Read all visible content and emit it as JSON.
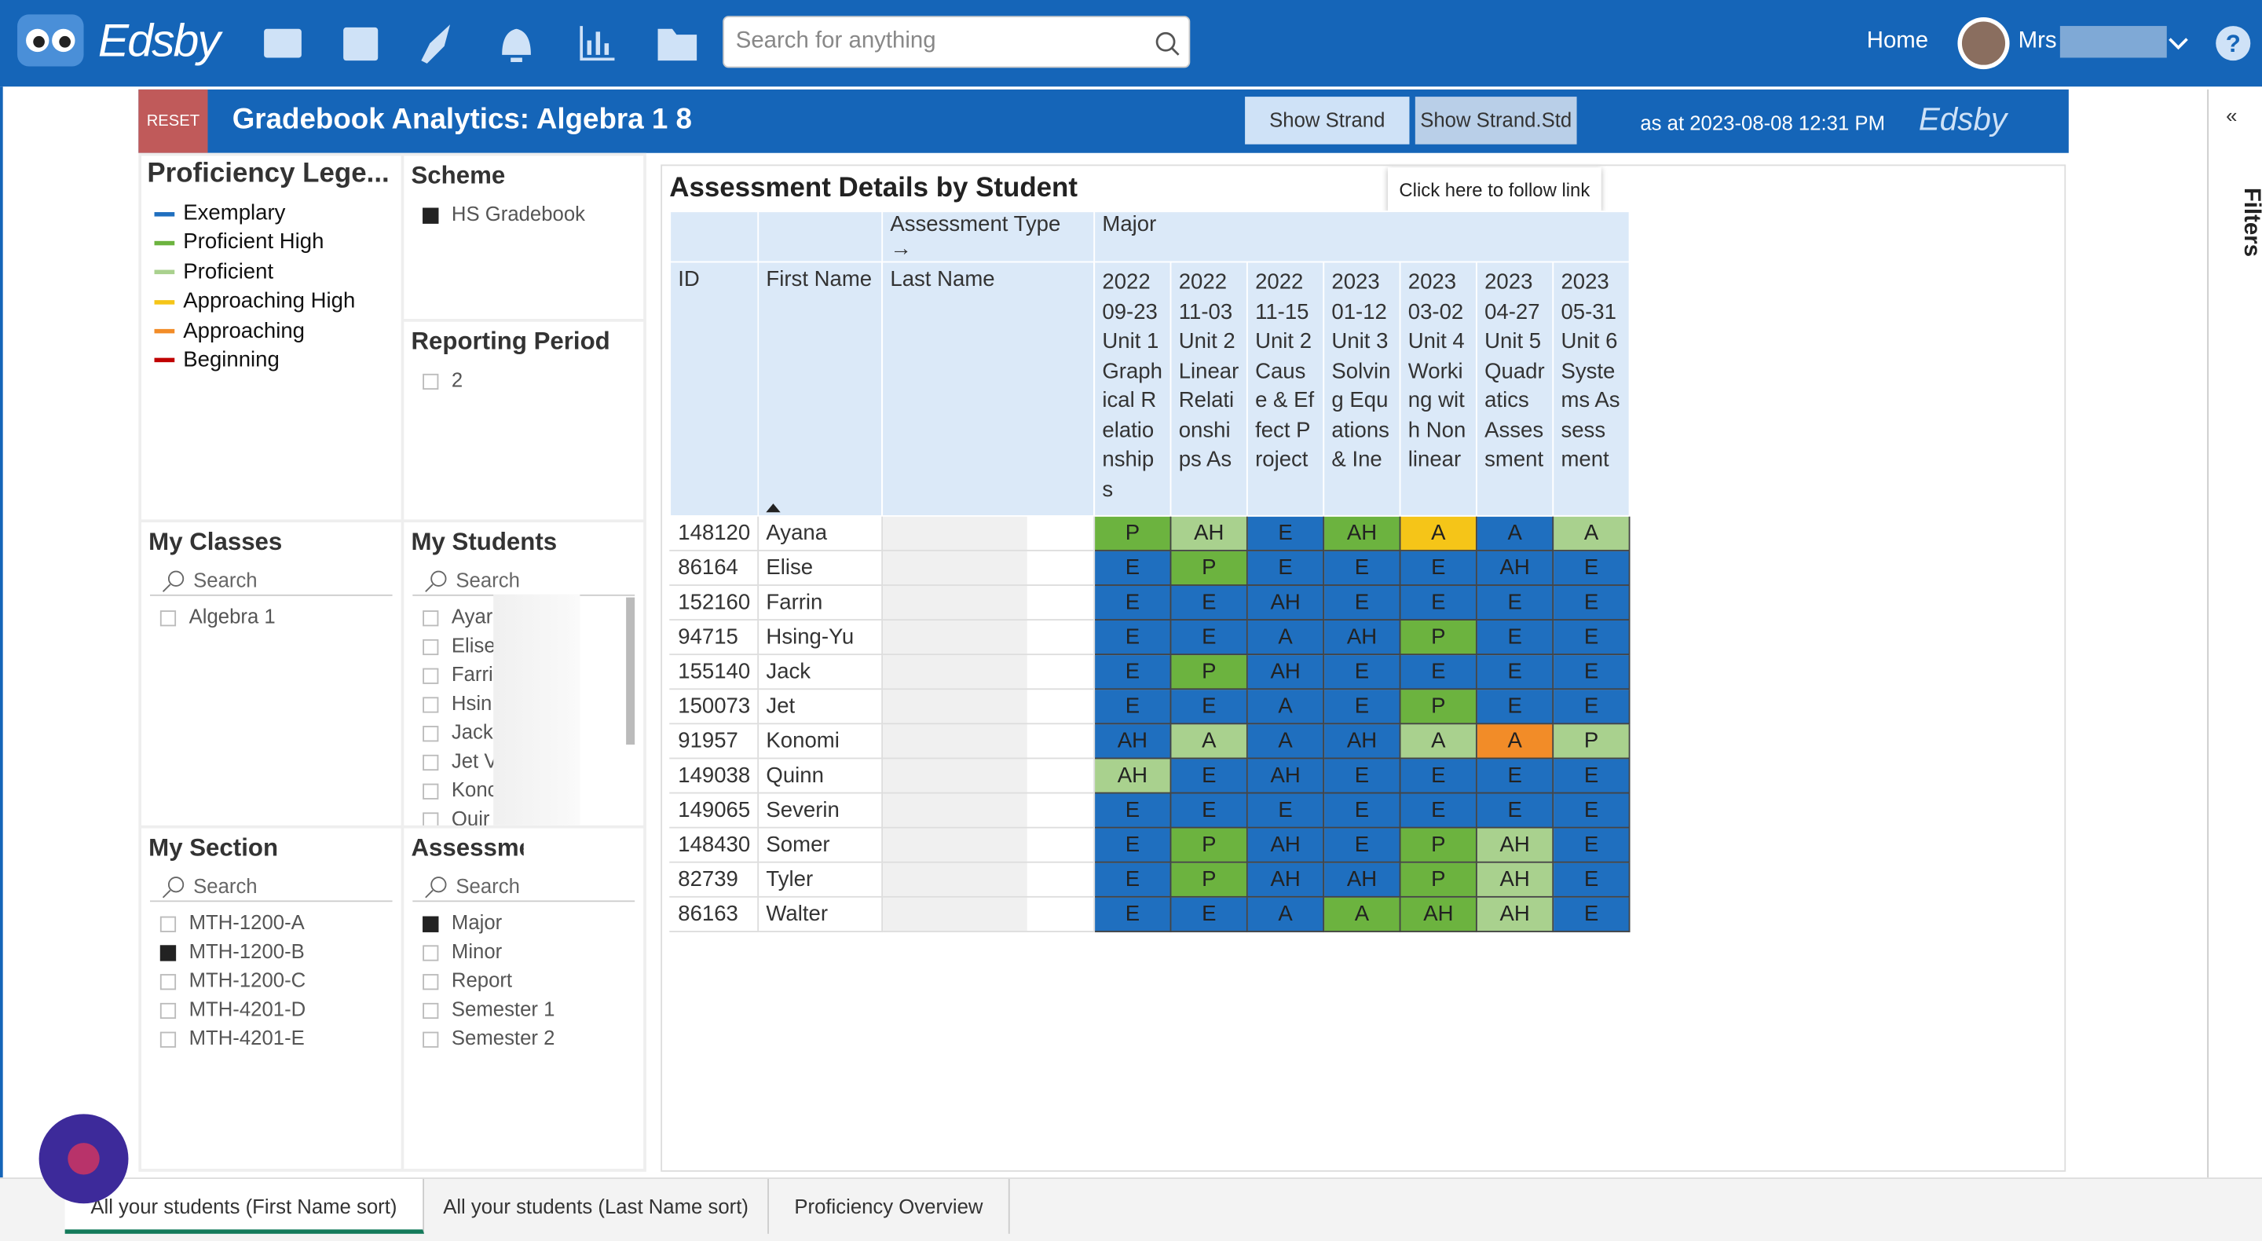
{
  "nav": {
    "logo": "Edsby",
    "search_placeholder": "Search for anything",
    "home": "Home",
    "user": "Mrs"
  },
  "header": {
    "reset": "RESET",
    "title": "Gradebook Analytics: Algebra 1 8",
    "buttons": [
      "Show Strand",
      "Show Strand.Std"
    ],
    "as_at": "as at 2023-08-08 12:31 PM",
    "tooltip": "Click here to follow link",
    "logo": "Edsby"
  },
  "legend": {
    "title": "Proficiency Lege...",
    "items": [
      {
        "label": "Exemplary",
        "color": "#1f6fbf"
      },
      {
        "label": "Proficient High",
        "color": "#6cb33f"
      },
      {
        "label": "Proficient",
        "color": "#a9d18e"
      },
      {
        "label": "Approaching High",
        "color": "#f5c518"
      },
      {
        "label": "Approaching",
        "color": "#f28c28"
      },
      {
        "label": "Beginning",
        "color": "#c00000"
      }
    ]
  },
  "scheme": {
    "title": "Scheme",
    "items": [
      {
        "label": "HS Gradebook",
        "checked": true
      }
    ]
  },
  "reporting_period": {
    "title": "Reporting Period",
    "items": [
      {
        "label": "2",
        "checked": false
      }
    ]
  },
  "my_classes": {
    "title": "My Classes",
    "search": "Search",
    "items": [
      {
        "label": "Algebra 1",
        "checked": false
      }
    ]
  },
  "my_students": {
    "title": "My Students",
    "search": "Search",
    "items": [
      {
        "label": "Ayar",
        "checked": false
      },
      {
        "label": "Elise",
        "checked": false
      },
      {
        "label": "Farri",
        "checked": false
      },
      {
        "label": "Hsin",
        "checked": false
      },
      {
        "label": "Jack",
        "checked": false
      },
      {
        "label": "Jet V",
        "checked": false
      },
      {
        "label": "Konc",
        "checked": false
      },
      {
        "label": "Quir",
        "checked": false
      }
    ]
  },
  "my_section": {
    "title": "My Section",
    "search": "Search",
    "items": [
      {
        "label": "MTH-1200-A",
        "checked": false
      },
      {
        "label": "MTH-1200-B",
        "checked": true
      },
      {
        "label": "MTH-1200-C",
        "checked": false
      },
      {
        "label": "MTH-4201-D",
        "checked": false
      },
      {
        "label": "MTH-4201-E",
        "checked": false
      }
    ]
  },
  "assessment": {
    "title": "Assessme",
    "search": "Search",
    "items": [
      {
        "label": "Major",
        "checked": true
      },
      {
        "label": "Minor",
        "checked": false
      },
      {
        "label": "Report",
        "checked": false
      },
      {
        "label": "Semester 1",
        "checked": false
      },
      {
        "label": "Semester 2",
        "checked": false
      }
    ]
  },
  "table": {
    "title": "Assessment Details by Student",
    "type_label": "Assessment Type →",
    "type_value": "Major",
    "columns": [
      "ID",
      "First Name",
      "Last Name"
    ],
    "assessments": [
      "2022 09-23 Unit 1 Graphical Relationships",
      "2022 11-03 Unit 2 Linear Relationships As",
      "2022 11-15 Unit 2 Cause & Effect Project",
      "2023 01-12 Unit 3 Solving Equations & Ine",
      "2023 03-02 Unit 4 Working with Nonlinear",
      "2023 04-27 Unit 5 Quadratics Assessment",
      "2023 05-31 Unit 6 Systems Assessment"
    ],
    "rows": [
      {
        "id": "148120",
        "first": "Ayana",
        "grades": [
          "P",
          "AH",
          "E",
          "AH",
          "A",
          "A",
          "A"
        ],
        "colors": [
          "#6cb33f",
          "#a9d18e",
          "#1f6fbf",
          "#6cb33f",
          "#f5c518",
          "#1f6fbf",
          "#a9d18e"
        ]
      },
      {
        "id": "86164",
        "first": "Elise",
        "grades": [
          "E",
          "P",
          "E",
          "E",
          "E",
          "AH",
          "E"
        ],
        "colors": [
          "#1f6fbf",
          "#6cb33f",
          "#1f6fbf",
          "#1f6fbf",
          "#1f6fbf",
          "#1f6fbf",
          "#1f6fbf"
        ]
      },
      {
        "id": "152160",
        "first": "Farrin",
        "grades": [
          "E",
          "E",
          "AH",
          "E",
          "E",
          "E",
          "E"
        ],
        "colors": [
          "#1f6fbf",
          "#1f6fbf",
          "#1f6fbf",
          "#1f6fbf",
          "#1f6fbf",
          "#1f6fbf",
          "#1f6fbf"
        ]
      },
      {
        "id": "94715",
        "first": "Hsing-Yu",
        "grades": [
          "E",
          "E",
          "A",
          "AH",
          "P",
          "E",
          "E"
        ],
        "colors": [
          "#1f6fbf",
          "#1f6fbf",
          "#1f6fbf",
          "#1f6fbf",
          "#6cb33f",
          "#1f6fbf",
          "#1f6fbf"
        ]
      },
      {
        "id": "155140",
        "first": "Jack",
        "grades": [
          "E",
          "P",
          "AH",
          "E",
          "E",
          "E",
          "E"
        ],
        "colors": [
          "#1f6fbf",
          "#6cb33f",
          "#1f6fbf",
          "#1f6fbf",
          "#1f6fbf",
          "#1f6fbf",
          "#1f6fbf"
        ]
      },
      {
        "id": "150073",
        "first": "Jet",
        "grades": [
          "E",
          "E",
          "A",
          "E",
          "P",
          "E",
          "E"
        ],
        "colors": [
          "#1f6fbf",
          "#1f6fbf",
          "#1f6fbf",
          "#1f6fbf",
          "#6cb33f",
          "#1f6fbf",
          "#1f6fbf"
        ]
      },
      {
        "id": "91957",
        "first": "Konomi",
        "grades": [
          "AH",
          "A",
          "A",
          "AH",
          "A",
          "A",
          "P"
        ],
        "colors": [
          "#1f6fbf",
          "#a9d18e",
          "#1f6fbf",
          "#1f6fbf",
          "#a9d18e",
          "#f28c28",
          "#a9d18e"
        ]
      },
      {
        "id": "149038",
        "first": "Quinn",
        "grades": [
          "AH",
          "E",
          "AH",
          "E",
          "E",
          "E",
          "E"
        ],
        "colors": [
          "#a9d18e",
          "#1f6fbf",
          "#1f6fbf",
          "#1f6fbf",
          "#1f6fbf",
          "#1f6fbf",
          "#1f6fbf"
        ]
      },
      {
        "id": "149065",
        "first": "Severin",
        "grades": [
          "E",
          "E",
          "E",
          "E",
          "E",
          "E",
          "E"
        ],
        "colors": [
          "#1f6fbf",
          "#1f6fbf",
          "#1f6fbf",
          "#1f6fbf",
          "#1f6fbf",
          "#1f6fbf",
          "#1f6fbf"
        ]
      },
      {
        "id": "148430",
        "first": "Somer",
        "grades": [
          "E",
          "P",
          "AH",
          "E",
          "P",
          "AH",
          "E"
        ],
        "colors": [
          "#1f6fbf",
          "#6cb33f",
          "#1f6fbf",
          "#1f6fbf",
          "#6cb33f",
          "#a9d18e",
          "#1f6fbf"
        ]
      },
      {
        "id": "82739",
        "first": "Tyler",
        "grades": [
          "E",
          "P",
          "AH",
          "AH",
          "P",
          "AH",
          "E"
        ],
        "colors": [
          "#1f6fbf",
          "#6cb33f",
          "#1f6fbf",
          "#1f6fbf",
          "#6cb33f",
          "#a9d18e",
          "#1f6fbf"
        ]
      },
      {
        "id": "86163",
        "first": "Walter",
        "grades": [
          "E",
          "E",
          "A",
          "A",
          "AH",
          "AH",
          "E"
        ],
        "colors": [
          "#1f6fbf",
          "#1f6fbf",
          "#1f6fbf",
          "#6cb33f",
          "#6cb33f",
          "#a9d18e",
          "#1f6fbf"
        ]
      }
    ]
  },
  "tabs": [
    "All your students (First Name sort)",
    "All your students (Last Name sort)",
    "Proficiency Overview"
  ],
  "filters": "Filters"
}
